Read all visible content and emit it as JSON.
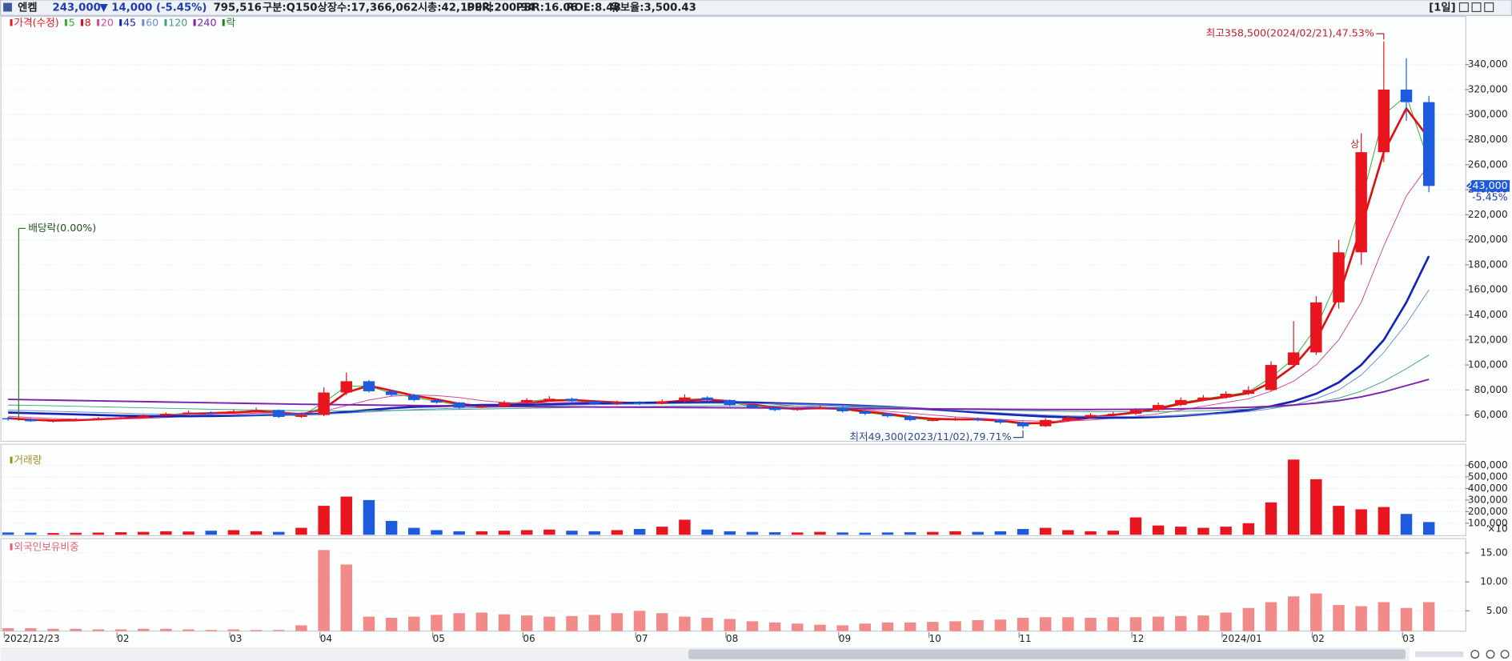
{
  "header": {
    "name": "엔켐",
    "price": "243,000",
    "change": "▼ 14,000 (-5.45%)",
    "volume": "795,516",
    "items": [
      "구분:Q150",
      "상장수:17,366,062",
      "시총:42,199억",
      "PER:200.94",
      "PBR:16.06",
      "ROE:8.48",
      "유보율:3,500.43"
    ],
    "period": "[1일]"
  },
  "chart_data": [
    {
      "type": "candlestick",
      "name": "가격(수정)",
      "up_color": "#e8141e",
      "down_color": "#1e5adc",
      "grid": true,
      "categories": [
        "2022/12/23",
        null,
        null,
        null,
        null,
        "02",
        null,
        null,
        null,
        null,
        "03",
        null,
        null,
        null,
        "04",
        null,
        null,
        null,
        null,
        "05",
        null,
        null,
        null,
        "06",
        null,
        null,
        null,
        null,
        "07",
        null,
        null,
        null,
        "08",
        null,
        null,
        null,
        null,
        "09",
        null,
        null,
        null,
        "10",
        null,
        null,
        null,
        "11",
        null,
        null,
        null,
        null,
        "12",
        null,
        null,
        null,
        "2024/01",
        null,
        null,
        null,
        "02",
        null,
        null,
        null,
        "03",
        null
      ],
      "open": [
        57500,
        56500,
        55000,
        55500,
        56500,
        57500,
        58000,
        59500,
        61000,
        62000,
        61500,
        63000,
        64000,
        58500,
        60000,
        78000,
        87000,
        79000,
        76000,
        72000,
        70000,
        66000,
        67000,
        70000,
        72000,
        73000,
        71000,
        69000,
        70000,
        69000,
        71000,
        74000,
        72000,
        68000,
        66000,
        64000,
        65000,
        66000,
        63000,
        61000,
        59000,
        56000,
        56000,
        57000,
        56000,
        54000,
        51000,
        56000,
        58000,
        60000,
        61000,
        64000,
        68000,
        72000,
        74000,
        77000,
        80000,
        100000,
        110000,
        150000,
        190000,
        270000,
        320000,
        310000
      ],
      "high": [
        58500,
        57500,
        56500,
        57500,
        58500,
        59500,
        60500,
        62000,
        63500,
        63000,
        64500,
        66000,
        64500,
        62000,
        82000,
        94000,
        88000,
        80000,
        77000,
        73000,
        70500,
        69000,
        71500,
        73500,
        75000,
        74000,
        72000,
        71500,
        71000,
        72500,
        76500,
        75000,
        72500,
        68500,
        66500,
        66500,
        67500,
        67000,
        64000,
        61500,
        60000,
        57500,
        58500,
        58000,
        57000,
        55000,
        57500,
        59500,
        61500,
        62500,
        65500,
        70000,
        74000,
        76000,
        79000,
        83000,
        103000,
        135000,
        155000,
        200000,
        285000,
        358500,
        345000,
        315000
      ],
      "low": [
        55500,
        54500,
        54000,
        55000,
        56000,
        57000,
        57500,
        59000,
        60500,
        60500,
        61000,
        62500,
        57500,
        57500,
        59000,
        76000,
        78000,
        75000,
        71000,
        69000,
        65000,
        65500,
        66000,
        69000,
        71000,
        70500,
        68000,
        68000,
        68000,
        68500,
        70000,
        71000,
        67000,
        65000,
        63000,
        63500,
        64500,
        62000,
        60000,
        58000,
        55000,
        55000,
        55500,
        55000,
        53000,
        49300,
        50500,
        55000,
        57500,
        59500,
        60000,
        63000,
        67000,
        71000,
        73000,
        76000,
        79000,
        98000,
        108000,
        145000,
        180000,
        262000,
        295000,
        238000
      ],
      "close": [
        56500,
        55000,
        55500,
        56500,
        57500,
        58000,
        59500,
        61000,
        62000,
        61500,
        63000,
        64000,
        58500,
        60000,
        78000,
        87000,
        79000,
        76000,
        72000,
        70000,
        66000,
        67000,
        70000,
        72000,
        73000,
        71000,
        69000,
        70000,
        69000,
        71000,
        74000,
        72000,
        68000,
        66000,
        64000,
        65000,
        66000,
        63000,
        61000,
        59000,
        56000,
        56000,
        57000,
        56000,
        54000,
        51000,
        56000,
        58000,
        60000,
        61000,
        64000,
        68000,
        72000,
        74000,
        77000,
        80000,
        100000,
        110000,
        150000,
        190000,
        270000,
        320000,
        310000,
        243000
      ],
      "series": [
        {
          "name": "5",
          "color": "#30b030",
          "width": 0.8,
          "values": [
            57000,
            55800,
            55300,
            56000,
            57000,
            57800,
            58800,
            60200,
            61500,
            61800,
            62300,
            63500,
            61000,
            59000,
            70000,
            83000,
            83000,
            77500,
            74000,
            71000,
            68000,
            66500,
            68500,
            71000,
            72500,
            72000,
            70000,
            69500,
            69500,
            70000,
            72500,
            73000,
            70000,
            67000,
            65000,
            64500,
            65500,
            64500,
            62000,
            60000,
            57500,
            56000,
            56500,
            56500,
            55000,
            52500,
            53500,
            57000,
            59000,
            60500,
            62500,
            66000,
            70000,
            73000,
            75500,
            78500,
            90000,
            105000,
            130000,
            170000,
            230000,
            300000,
            315000,
            262000
          ]
        },
        {
          "name": "8",
          "color": "#e01010",
          "width": 2.2,
          "values": [
            57500,
            56300,
            55600,
            55800,
            56600,
            57300,
            58300,
            59500,
            60800,
            61500,
            62000,
            63000,
            62200,
            60500,
            65000,
            78000,
            83500,
            79500,
            75500,
            72500,
            69000,
            67000,
            67500,
            69500,
            71500,
            72000,
            71000,
            70000,
            69500,
            70000,
            71500,
            72500,
            71000,
            68500,
            66000,
            65000,
            65500,
            65000,
            63000,
            61000,
            58500,
            57000,
            56500,
            56500,
            55500,
            53500,
            53500,
            55500,
            58000,
            60000,
            62000,
            65000,
            69000,
            72000,
            74500,
            77500,
            86000,
            99000,
            120000,
            155000,
            210000,
            270000,
            305000,
            281000
          ]
        },
        {
          "name": "20",
          "color": "#d04a9a",
          "width": 0.8,
          "values": [
            59000,
            58000,
            57200,
            56700,
            56600,
            56800,
            57300,
            58000,
            58900,
            59700,
            60500,
            61500,
            61800,
            61500,
            63000,
            67500,
            72000,
            75000,
            76000,
            75500,
            74000,
            71500,
            70000,
            69500,
            69800,
            70200,
            70400,
            70200,
            70000,
            70000,
            70500,
            71000,
            71000,
            70000,
            68500,
            67000,
            66000,
            65500,
            64500,
            63000,
            61500,
            60000,
            58500,
            57500,
            56500,
            55500,
            55000,
            55200,
            56000,
            57500,
            59000,
            61000,
            64000,
            67000,
            70000,
            73000,
            79000,
            87000,
            100000,
            120000,
            150000,
            195000,
            235000,
            260000
          ]
        },
        {
          "name": "45",
          "color": "#1424b4",
          "width": 2.2,
          "values": [
            62000,
            61500,
            61000,
            60500,
            60000,
            59500,
            59200,
            59000,
            59000,
            59200,
            59500,
            59900,
            60200,
            60500,
            61000,
            62500,
            64000,
            65500,
            66500,
            67000,
            67500,
            68000,
            68000,
            68200,
            68500,
            69000,
            69300,
            69500,
            69800,
            70000,
            70200,
            70300,
            70300,
            70000,
            69500,
            69000,
            68500,
            68000,
            67300,
            66500,
            65500,
            64500,
            63300,
            62000,
            60800,
            59700,
            58800,
            58200,
            57800,
            57800,
            58000,
            58500,
            59300,
            60500,
            62000,
            64000,
            67000,
            71000,
            77000,
            86000,
            100000,
            120000,
            150000,
            187000
          ]
        },
        {
          "name": "60",
          "color": "#6c8cd8",
          "width": 0.8,
          "values": [
            64000,
            63500,
            63000,
            62500,
            62000,
            61500,
            61000,
            60700,
            60400,
            60200,
            60100,
            60100,
            60200,
            60300,
            60700,
            61500,
            62500,
            63500,
            64300,
            65000,
            65500,
            66000,
            66500,
            67000,
            67500,
            68000,
            68300,
            68500,
            68700,
            69000,
            69200,
            69300,
            69300,
            69200,
            69000,
            68700,
            68300,
            67800,
            67200,
            66500,
            65700,
            64800,
            63800,
            62800,
            61800,
            60800,
            60000,
            59400,
            59000,
            58800,
            58800,
            59000,
            59500,
            60300,
            61300,
            62700,
            65000,
            68000,
            73000,
            80000,
            92000,
            110000,
            133000,
            160000
          ]
        },
        {
          "name": "120",
          "color": "#40a080",
          "width": 0.8,
          "values": [
            68000,
            67700,
            67400,
            67000,
            66600,
            66200,
            65800,
            65400,
            65000,
            64600,
            64300,
            64000,
            63700,
            63500,
            63400,
            63400,
            63500,
            63700,
            63900,
            64200,
            64500,
            64800,
            65100,
            65400,
            65700,
            66000,
            66300,
            66600,
            66800,
            67000,
            67200,
            67300,
            67400,
            67400,
            67300,
            67100,
            66900,
            66600,
            66300,
            65900,
            65500,
            65100,
            64700,
            64300,
            63900,
            63500,
            63200,
            62900,
            62700,
            62600,
            62600,
            62700,
            63000,
            63400,
            64000,
            64800,
            66000,
            67600,
            70000,
            73500,
            79000,
            87000,
            97000,
            108000
          ]
        },
        {
          "name": "240",
          "color": "#8020b0",
          "width": 1.6,
          "values": [
            72500,
            72200,
            71900,
            71600,
            71300,
            71000,
            70700,
            70400,
            70100,
            69800,
            69500,
            69200,
            68900,
            68600,
            68400,
            68200,
            68000,
            67800,
            67600,
            67400,
            67200,
            67000,
            66800,
            66700,
            66600,
            66500,
            66400,
            66300,
            66200,
            66100,
            66000,
            65900,
            65800,
            65700,
            65600,
            65500,
            65400,
            65300,
            65200,
            65100,
            65000,
            64900,
            64800,
            64700,
            64600,
            64500,
            64400,
            64400,
            64400,
            64500,
            64600,
            64800,
            65000,
            65300,
            65700,
            66200,
            67000,
            68000,
            69500,
            71500,
            74500,
            78500,
            83500,
            88500
          ]
        }
      ],
      "ex_dividend": {
        "name": "락",
        "color": "#208020",
        "label": "배당락(0.00%)"
      },
      "high_label": "최고358,500(2024/02/21),47.53%",
      "low_label": "최저49,300(2023/11/02),79.71%",
      "upper_limit_label": "상",
      "last_price_label": "243,000",
      "last_change_label": "-5.45%",
      "ylim": [
        39000,
        378500
      ],
      "yticks": [
        {
          "value": 60000,
          "label": "60,000"
        },
        {
          "value": 80000,
          "label": "80,000"
        },
        {
          "value": 100000,
          "label": "100,000"
        },
        {
          "value": 120000,
          "label": "120,000"
        },
        {
          "value": 140000,
          "label": "140,000"
        },
        {
          "value": 160000,
          "label": "160,000"
        },
        {
          "value": 180000,
          "label": "180,000"
        },
        {
          "value": 200000,
          "label": "200,000"
        },
        {
          "value": 220000,
          "label": "220,000"
        },
        {
          "value": 240000,
          "label": "240,000"
        },
        {
          "value": 260000,
          "label": "260,000"
        },
        {
          "value": 280000,
          "label": "280,000"
        },
        {
          "value": 300000,
          "label": "300,000"
        },
        {
          "value": 320000,
          "label": "320,000"
        },
        {
          "value": 340000,
          "label": "340,000"
        }
      ]
    },
    {
      "type": "bar",
      "title": "거래량",
      "title_color": "#a09020",
      "up_color": "#e8141e",
      "down_color": "#1e5adc",
      "unit_label": "×10",
      "grid": true,
      "values": [
        20000,
        18000,
        15000,
        17000,
        19000,
        22000,
        25000,
        30000,
        28000,
        35000,
        40000,
        30000,
        25000,
        60000,
        250000,
        330000,
        300000,
        120000,
        60000,
        40000,
        30000,
        30000,
        35000,
        40000,
        45000,
        35000,
        30000,
        40000,
        50000,
        70000,
        130000,
        45000,
        30000,
        25000,
        22000,
        20000,
        25000,
        20000,
        18000,
        20000,
        22000,
        25000,
        30000,
        25000,
        30000,
        50000,
        60000,
        40000,
        30000,
        35000,
        150000,
        80000,
        70000,
        60000,
        70000,
        100000,
        280000,
        650000,
        480000,
        250000,
        220000,
        240000,
        180000,
        110000
      ],
      "ylim": [
        0,
        708000
      ],
      "yticks": [
        {
          "value": 100000,
          "label": "100,000"
        },
        {
          "value": 200000,
          "label": "200,000"
        },
        {
          "value": 300000,
          "label": "300,000"
        },
        {
          "value": 400000,
          "label": "400,000"
        },
        {
          "value": 500000,
          "label": "500,000"
        },
        {
          "value": 600000,
          "label": "600,000"
        }
      ]
    },
    {
      "type": "bar",
      "title": "외국인보유비중",
      "title_color": "#e06070",
      "color": "#f28a8a",
      "grid": true,
      "values": [
        2.0,
        2.0,
        1.9,
        1.9,
        1.8,
        1.8,
        1.9,
        1.9,
        1.8,
        1.7,
        1.8,
        1.7,
        1.7,
        2.5,
        15.5,
        13.0,
        4.0,
        3.8,
        4.0,
        4.3,
        4.6,
        4.7,
        4.4,
        4.2,
        4.0,
        4.1,
        4.3,
        4.6,
        5.0,
        4.6,
        4.0,
        3.8,
        3.6,
        3.2,
        3.0,
        2.8,
        2.6,
        2.5,
        2.8,
        3.0,
        3.0,
        3.1,
        3.2,
        3.4,
        3.5,
        3.8,
        3.9,
        3.9,
        3.8,
        3.9,
        3.9,
        4.0,
        4.1,
        4.2,
        4.7,
        5.5,
        6.5,
        7.5,
        8.0,
        6.0,
        5.8,
        6.5,
        5.5,
        6.5
      ],
      "ylim": [
        1.5,
        17.3
      ],
      "yticks": [
        {
          "value": 5,
          "label": "5.00"
        },
        {
          "value": 10,
          "label": "10.00"
        },
        {
          "value": 15,
          "label": "15.00"
        }
      ]
    }
  ]
}
